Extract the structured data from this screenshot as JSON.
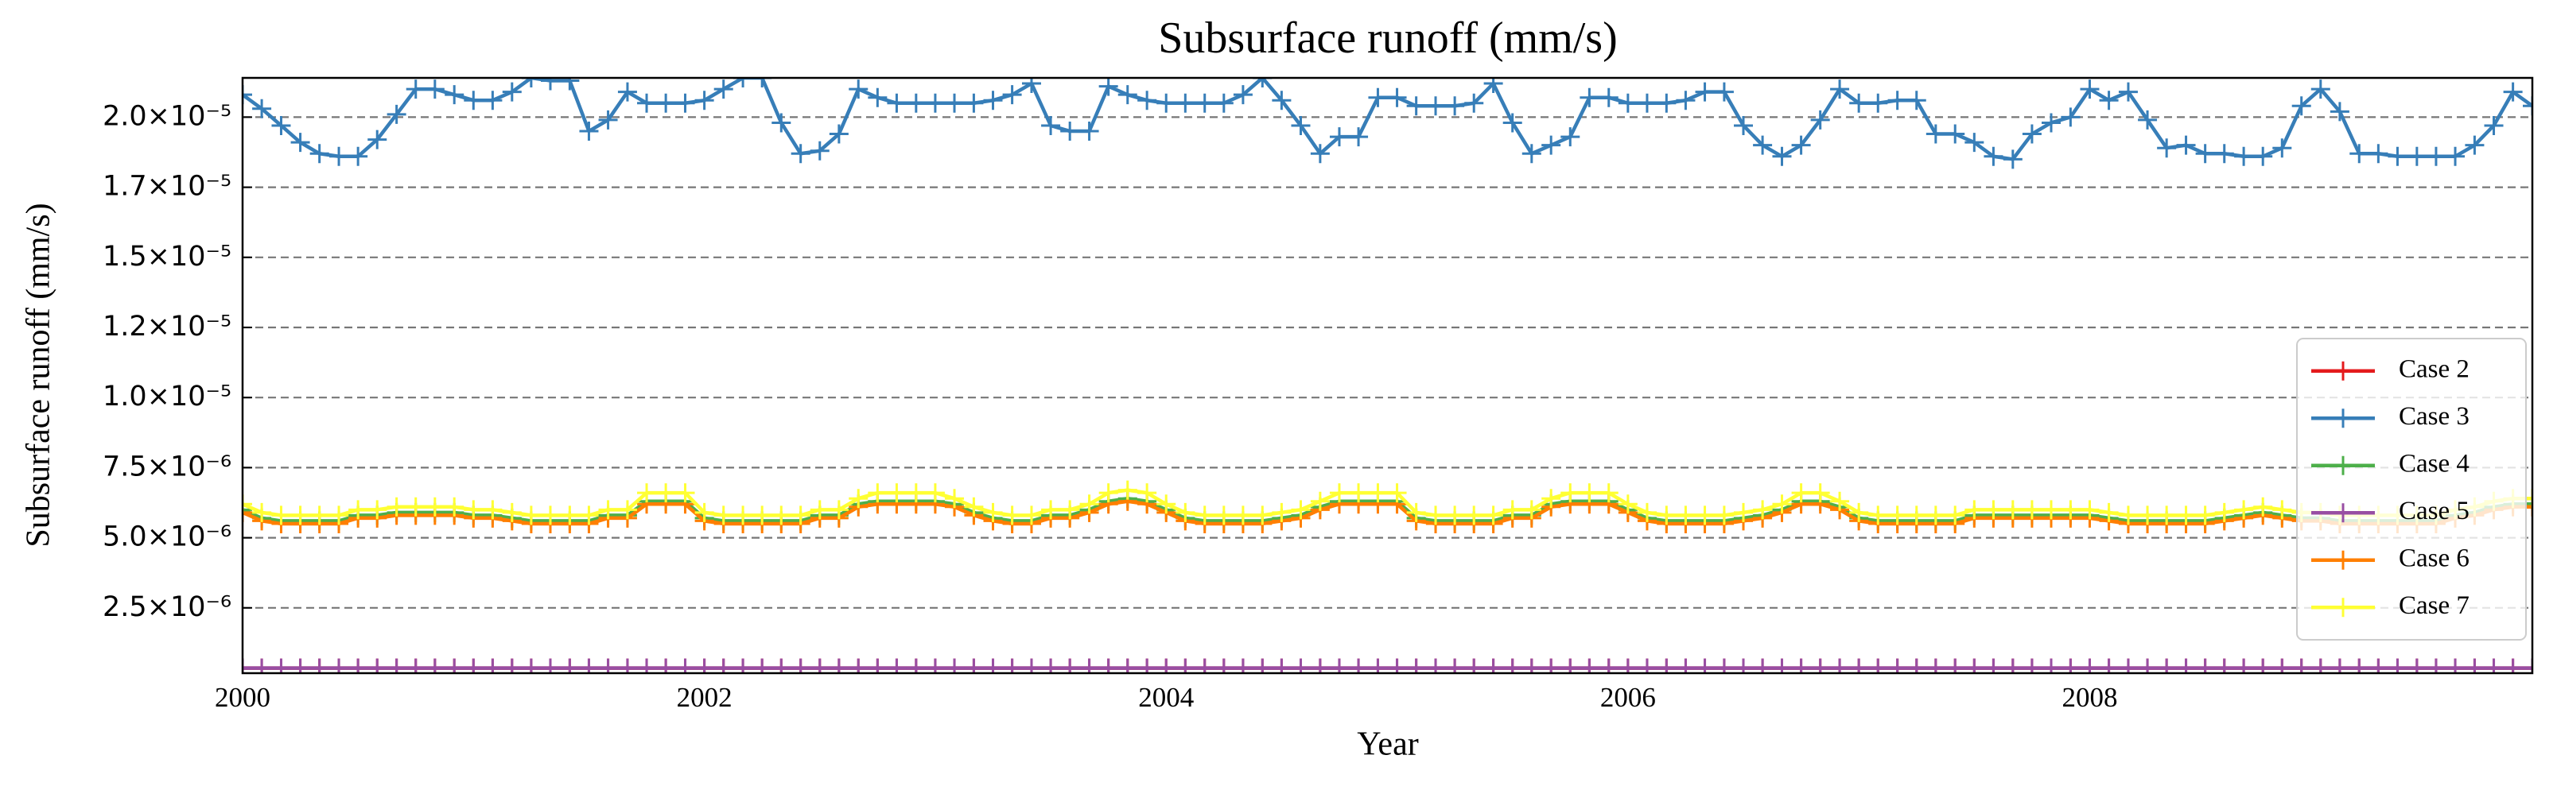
{
  "chart_data": {
    "type": "line",
    "title": "Subsurface runoff (mm/s)",
    "xlabel": "Year",
    "ylabel": "Subsurface runoff (mm/s)",
    "xlim": [
      2000,
      2009.917
    ],
    "xticks": [
      2000,
      2002,
      2004,
      2006,
      2008
    ],
    "ylim": [
      1.7e-07,
      2.14e-05
    ],
    "yticks": [
      {
        "value": 2.5e-06,
        "label": "2.5×10⁻⁶"
      },
      {
        "value": 5e-06,
        "label": "5.0×10⁻⁶"
      },
      {
        "value": 7.5e-06,
        "label": "7.5×10⁻⁶"
      },
      {
        "value": 1e-05,
        "label": "1.0×10⁻⁵"
      },
      {
        "value": 1.25e-05,
        "label": "1.2×10⁻⁵"
      },
      {
        "value": 1.5e-05,
        "label": "1.5×10⁻⁵"
      },
      {
        "value": 1.75e-05,
        "label": "1.7×10⁻⁵"
      },
      {
        "value": 2e-05,
        "label": "2.0×10⁻⁵"
      }
    ],
    "grid": true,
    "legend": "lower right",
    "x": [
      2000,
      2000.083,
      2000.167,
      2000.25,
      2000.333,
      2000.417,
      2000.5,
      2000.583,
      2000.667,
      2000.75,
      2000.833,
      2000.917,
      2001,
      2001.083,
      2001.167,
      2001.25,
      2001.333,
      2001.417,
      2001.5,
      2001.583,
      2001.667,
      2001.75,
      2001.833,
      2001.917,
      2002,
      2002.083,
      2002.167,
      2002.25,
      2002.333,
      2002.417,
      2002.5,
      2002.583,
      2002.667,
      2002.75,
      2002.833,
      2002.917,
      2003,
      2003.083,
      2003.167,
      2003.25,
      2003.333,
      2003.417,
      2003.5,
      2003.583,
      2003.667,
      2003.75,
      2003.833,
      2003.917,
      2004,
      2004.083,
      2004.167,
      2004.25,
      2004.333,
      2004.417,
      2004.5,
      2004.583,
      2004.667,
      2004.75,
      2004.833,
      2004.917,
      2005,
      2005.083,
      2005.167,
      2005.25,
      2005.333,
      2005.417,
      2005.5,
      2005.583,
      2005.667,
      2005.75,
      2005.833,
      2005.917,
      2006,
      2006.083,
      2006.167,
      2006.25,
      2006.333,
      2006.417,
      2006.5,
      2006.583,
      2006.667,
      2006.75,
      2006.833,
      2006.917,
      2007,
      2007.083,
      2007.167,
      2007.25,
      2007.333,
      2007.417,
      2007.5,
      2007.583,
      2007.667,
      2007.75,
      2007.833,
      2007.917,
      2008,
      2008.083,
      2008.167,
      2008.25,
      2008.333,
      2008.417,
      2008.5,
      2008.583,
      2008.667,
      2008.75,
      2008.833,
      2008.917,
      2009,
      2009.083,
      2009.167,
      2009.25,
      2009.333,
      2009.417,
      2009.5,
      2009.583,
      2009.667,
      2009.75,
      2009.833,
      2009.917
    ],
    "series": [
      {
        "name": "Case 2",
        "color": "#e41a1c",
        "values": [
          3.5e-07,
          3.5e-07,
          3.5e-07,
          3.5e-07,
          3.5e-07,
          3.5e-07,
          3.5e-07,
          3.5e-07,
          3.5e-07,
          3.5e-07,
          3.5e-07,
          3.5e-07,
          3.5e-07,
          3.5e-07,
          3.5e-07,
          3.5e-07,
          3.5e-07,
          3.5e-07,
          3.5e-07,
          3.5e-07,
          3.5e-07,
          3.5e-07,
          3.5e-07,
          3.5e-07,
          3.5e-07,
          3.5e-07,
          3.5e-07,
          3.5e-07,
          3.5e-07,
          3.5e-07,
          3.5e-07,
          3.5e-07,
          3.5e-07,
          3.5e-07,
          3.5e-07,
          3.5e-07,
          3.5e-07,
          3.5e-07,
          3.5e-07,
          3.5e-07,
          3.5e-07,
          3.5e-07,
          3.5e-07,
          3.5e-07,
          3.5e-07,
          3.5e-07,
          3.5e-07,
          3.5e-07,
          3.5e-07,
          3.5e-07,
          3.5e-07,
          3.5e-07,
          3.5e-07,
          3.5e-07,
          3.5e-07,
          3.5e-07,
          3.5e-07,
          3.5e-07,
          3.5e-07,
          3.5e-07,
          3.5e-07,
          3.5e-07,
          3.5e-07,
          3.5e-07,
          3.5e-07,
          3.5e-07,
          3.5e-07,
          3.5e-07,
          3.5e-07,
          3.5e-07,
          3.5e-07,
          3.5e-07,
          3.5e-07,
          3.5e-07,
          3.5e-07,
          3.5e-07,
          3.5e-07,
          3.5e-07,
          3.5e-07,
          3.5e-07,
          3.5e-07,
          3.5e-07,
          3.5e-07,
          3.5e-07,
          3.5e-07,
          3.5e-07,
          3.5e-07,
          3.5e-07,
          3.5e-07,
          3.5e-07,
          3.5e-07,
          3.5e-07,
          3.5e-07,
          3.5e-07,
          3.5e-07,
          3.5e-07,
          3.5e-07,
          3.5e-07,
          3.5e-07,
          3.5e-07,
          3.5e-07,
          3.5e-07,
          3.5e-07,
          3.5e-07,
          3.5e-07,
          3.5e-07,
          3.5e-07,
          3.5e-07,
          3.5e-07,
          3.5e-07,
          3.5e-07,
          3.5e-07,
          3.5e-07,
          3.5e-07,
          3.5e-07,
          3.5e-07,
          3.5e-07,
          3.5e-07,
          3.5e-07,
          3.5e-07
        ]
      },
      {
        "name": "Case 3",
        "color": "#377eb8",
        "values": [
          2.08e-05,
          2.03e-05,
          1.97e-05,
          1.91e-05,
          1.87e-05,
          1.86e-05,
          1.86e-05,
          1.92e-05,
          2.01e-05,
          2.1e-05,
          2.1e-05,
          2.08e-05,
          2.06e-05,
          2.06e-05,
          2.09e-05,
          2.14e-05,
          2.13e-05,
          2.13e-05,
          1.95e-05,
          1.99e-05,
          2.09e-05,
          2.05e-05,
          2.05e-05,
          2.05e-05,
          2.06e-05,
          2.1e-05,
          2.14e-05,
          2.14e-05,
          1.98e-05,
          1.87e-05,
          1.88e-05,
          1.94e-05,
          2.1e-05,
          2.07e-05,
          2.05e-05,
          2.05e-05,
          2.05e-05,
          2.05e-05,
          2.05e-05,
          2.06e-05,
          2.08e-05,
          2.12e-05,
          1.97e-05,
          1.95e-05,
          1.95e-05,
          2.11e-05,
          2.08e-05,
          2.06e-05,
          2.05e-05,
          2.05e-05,
          2.05e-05,
          2.05e-05,
          2.08e-05,
          2.14e-05,
          2.06e-05,
          1.97e-05,
          1.87e-05,
          1.93e-05,
          1.93e-05,
          2.07e-05,
          2.07e-05,
          2.04e-05,
          2.04e-05,
          2.04e-05,
          2.05e-05,
          2.12e-05,
          1.98e-05,
          1.87e-05,
          1.9e-05,
          1.93e-05,
          2.07e-05,
          2.07e-05,
          2.05e-05,
          2.05e-05,
          2.05e-05,
          2.06e-05,
          2.09e-05,
          2.09e-05,
          1.97e-05,
          1.9e-05,
          1.86e-05,
          1.9e-05,
          1.99e-05,
          2.1e-05,
          2.05e-05,
          2.05e-05,
          2.06e-05,
          2.06e-05,
          1.94e-05,
          1.94e-05,
          1.91e-05,
          1.86e-05,
          1.85e-05,
          1.94e-05,
          1.98e-05,
          2e-05,
          2.1e-05,
          2.06e-05,
          2.09e-05,
          1.99e-05,
          1.89e-05,
          1.9e-05,
          1.87e-05,
          1.87e-05,
          1.86e-05,
          1.86e-05,
          1.89e-05,
          2.04e-05,
          2.1e-05,
          2.02e-05,
          1.87e-05,
          1.87e-05,
          1.86e-05,
          1.86e-05,
          1.86e-05,
          1.86e-05,
          1.9e-05,
          1.97e-05,
          2.09e-05,
          2.04e-05
        ]
      },
      {
        "name": "Case 4",
        "color": "#4daf4a",
        "values": [
          6e-06,
          5.7e-06,
          5.6e-06,
          5.6e-06,
          5.6e-06,
          5.6e-06,
          5.8e-06,
          5.8e-06,
          5.9e-06,
          5.9e-06,
          5.9e-06,
          5.9e-06,
          5.8e-06,
          5.8e-06,
          5.7e-06,
          5.6e-06,
          5.6e-06,
          5.6e-06,
          5.6e-06,
          5.8e-06,
          5.8e-06,
          6.3e-06,
          6.3e-06,
          6.3e-06,
          5.7e-06,
          5.6e-06,
          5.6e-06,
          5.6e-06,
          5.6e-06,
          5.6e-06,
          5.8e-06,
          5.8e-06,
          6.2e-06,
          6.3e-06,
          6.3e-06,
          6.3e-06,
          6.3e-06,
          6.2e-06,
          5.9e-06,
          5.7e-06,
          5.6e-06,
          5.6e-06,
          5.8e-06,
          5.8e-06,
          6e-06,
          6.3e-06,
          6.4e-06,
          6.3e-06,
          6e-06,
          5.7e-06,
          5.6e-06,
          5.6e-06,
          5.6e-06,
          5.6e-06,
          5.7e-06,
          5.8e-06,
          6.1e-06,
          6.3e-06,
          6.3e-06,
          6.3e-06,
          6.3e-06,
          5.7e-06,
          5.6e-06,
          5.6e-06,
          5.6e-06,
          5.6e-06,
          5.8e-06,
          5.8e-06,
          6.2e-06,
          6.3e-06,
          6.3e-06,
          6.3e-06,
          6e-06,
          5.7e-06,
          5.6e-06,
          5.6e-06,
          5.6e-06,
          5.6e-06,
          5.7e-06,
          5.8e-06,
          6e-06,
          6.3e-06,
          6.3e-06,
          6.1e-06,
          5.7e-06,
          5.6e-06,
          5.6e-06,
          5.6e-06,
          5.6e-06,
          5.6e-06,
          5.8e-06,
          5.8e-06,
          5.8e-06,
          5.8e-06,
          5.8e-06,
          5.8e-06,
          5.8e-06,
          5.7e-06,
          5.6e-06,
          5.6e-06,
          5.6e-06,
          5.6e-06,
          5.6e-06,
          5.7e-06,
          5.8e-06,
          5.9e-06,
          5.8e-06,
          5.7e-06,
          5.7e-06,
          5.6e-06,
          5.6e-06,
          5.6e-06,
          5.6e-06,
          5.6e-06,
          5.6e-06,
          5.8e-06,
          5.9e-06,
          6.1e-06,
          6.2e-06,
          6.2e-06
        ]
      },
      {
        "name": "Case 5",
        "color": "#984ea3",
        "values": [
          3.5e-07,
          3.5e-07,
          3.5e-07,
          3.5e-07,
          3.5e-07,
          3.5e-07,
          3.5e-07,
          3.5e-07,
          3.5e-07,
          3.5e-07,
          3.5e-07,
          3.5e-07,
          3.5e-07,
          3.5e-07,
          3.5e-07,
          3.5e-07,
          3.5e-07,
          3.5e-07,
          3.5e-07,
          3.5e-07,
          3.5e-07,
          3.5e-07,
          3.5e-07,
          3.5e-07,
          3.5e-07,
          3.5e-07,
          3.5e-07,
          3.5e-07,
          3.5e-07,
          3.5e-07,
          3.5e-07,
          3.5e-07,
          3.5e-07,
          3.5e-07,
          3.5e-07,
          3.5e-07,
          3.5e-07,
          3.5e-07,
          3.5e-07,
          3.5e-07,
          3.5e-07,
          3.5e-07,
          3.5e-07,
          3.5e-07,
          3.5e-07,
          3.5e-07,
          3.5e-07,
          3.5e-07,
          3.5e-07,
          3.5e-07,
          3.5e-07,
          3.5e-07,
          3.5e-07,
          3.5e-07,
          3.5e-07,
          3.5e-07,
          3.5e-07,
          3.5e-07,
          3.5e-07,
          3.5e-07,
          3.5e-07,
          3.5e-07,
          3.5e-07,
          3.5e-07,
          3.5e-07,
          3.5e-07,
          3.5e-07,
          3.5e-07,
          3.5e-07,
          3.5e-07,
          3.5e-07,
          3.5e-07,
          3.5e-07,
          3.5e-07,
          3.5e-07,
          3.5e-07,
          3.5e-07,
          3.5e-07,
          3.5e-07,
          3.5e-07,
          3.5e-07,
          3.5e-07,
          3.5e-07,
          3.5e-07,
          3.5e-07,
          3.5e-07,
          3.5e-07,
          3.5e-07,
          3.5e-07,
          3.5e-07,
          3.5e-07,
          3.5e-07,
          3.5e-07,
          3.5e-07,
          3.5e-07,
          3.5e-07,
          3.5e-07,
          3.5e-07,
          3.5e-07,
          3.5e-07,
          3.5e-07,
          3.5e-07,
          3.5e-07,
          3.5e-07,
          3.5e-07,
          3.5e-07,
          3.5e-07,
          3.5e-07,
          3.5e-07,
          3.5e-07,
          3.5e-07,
          3.5e-07,
          3.5e-07,
          3.5e-07,
          3.5e-07,
          3.5e-07,
          3.5e-07,
          3.5e-07,
          3.5e-07,
          3.5e-07
        ]
      },
      {
        "name": "Case 6",
        "color": "#ff7f00",
        "values": [
          5.9e-06,
          5.6e-06,
          5.5e-06,
          5.5e-06,
          5.5e-06,
          5.5e-06,
          5.7e-06,
          5.7e-06,
          5.8e-06,
          5.8e-06,
          5.8e-06,
          5.8e-06,
          5.7e-06,
          5.7e-06,
          5.6e-06,
          5.5e-06,
          5.5e-06,
          5.5e-06,
          5.5e-06,
          5.7e-06,
          5.7e-06,
          6.2e-06,
          6.2e-06,
          6.2e-06,
          5.6e-06,
          5.5e-06,
          5.5e-06,
          5.5e-06,
          5.5e-06,
          5.5e-06,
          5.7e-06,
          5.7e-06,
          6.1e-06,
          6.2e-06,
          6.2e-06,
          6.2e-06,
          6.2e-06,
          6.1e-06,
          5.8e-06,
          5.6e-06,
          5.5e-06,
          5.5e-06,
          5.7e-06,
          5.7e-06,
          5.9e-06,
          6.2e-06,
          6.3e-06,
          6.2e-06,
          5.9e-06,
          5.6e-06,
          5.5e-06,
          5.5e-06,
          5.5e-06,
          5.5e-06,
          5.6e-06,
          5.7e-06,
          6e-06,
          6.2e-06,
          6.2e-06,
          6.2e-06,
          6.2e-06,
          5.6e-06,
          5.5e-06,
          5.5e-06,
          5.5e-06,
          5.5e-06,
          5.7e-06,
          5.7e-06,
          6.1e-06,
          6.2e-06,
          6.2e-06,
          6.2e-06,
          5.9e-06,
          5.6e-06,
          5.5e-06,
          5.5e-06,
          5.5e-06,
          5.5e-06,
          5.6e-06,
          5.7e-06,
          5.9e-06,
          6.2e-06,
          6.2e-06,
          6e-06,
          5.6e-06,
          5.5e-06,
          5.5e-06,
          5.5e-06,
          5.5e-06,
          5.5e-06,
          5.7e-06,
          5.7e-06,
          5.7e-06,
          5.7e-06,
          5.7e-06,
          5.7e-06,
          5.7e-06,
          5.6e-06,
          5.5e-06,
          5.5e-06,
          5.5e-06,
          5.5e-06,
          5.5e-06,
          5.6e-06,
          5.7e-06,
          5.8e-06,
          5.7e-06,
          5.6e-06,
          5.6e-06,
          5.5e-06,
          5.5e-06,
          5.5e-06,
          5.5e-06,
          5.5e-06,
          5.5e-06,
          5.7e-06,
          5.8e-06,
          6e-06,
          6.1e-06,
          6.1e-06
        ]
      },
      {
        "name": "Case 7",
        "color": "#ffff33",
        "values": [
          6.2e-06,
          5.9e-06,
          5.8e-06,
          5.8e-06,
          5.8e-06,
          5.8e-06,
          6e-06,
          6e-06,
          6.1e-06,
          6.1e-06,
          6.1e-06,
          6.1e-06,
          6e-06,
          6e-06,
          5.9e-06,
          5.8e-06,
          5.8e-06,
          5.8e-06,
          5.8e-06,
          6e-06,
          6e-06,
          6.6e-06,
          6.6e-06,
          6.6e-06,
          5.9e-06,
          5.8e-06,
          5.8e-06,
          5.8e-06,
          5.8e-06,
          5.8e-06,
          6e-06,
          6e-06,
          6.4e-06,
          6.6e-06,
          6.6e-06,
          6.6e-06,
          6.6e-06,
          6.4e-06,
          6.1e-06,
          5.9e-06,
          5.8e-06,
          5.8e-06,
          6e-06,
          6e-06,
          6.2e-06,
          6.6e-06,
          6.7e-06,
          6.6e-06,
          6.2e-06,
          5.9e-06,
          5.8e-06,
          5.8e-06,
          5.8e-06,
          5.8e-06,
          5.9e-06,
          6e-06,
          6.3e-06,
          6.6e-06,
          6.6e-06,
          6.6e-06,
          6.6e-06,
          5.9e-06,
          5.8e-06,
          5.8e-06,
          5.8e-06,
          5.8e-06,
          6e-06,
          6e-06,
          6.4e-06,
          6.6e-06,
          6.6e-06,
          6.6e-06,
          6.2e-06,
          5.9e-06,
          5.8e-06,
          5.8e-06,
          5.8e-06,
          5.8e-06,
          5.9e-06,
          6e-06,
          6.2e-06,
          6.6e-06,
          6.6e-06,
          6.3e-06,
          5.9e-06,
          5.8e-06,
          5.8e-06,
          5.8e-06,
          5.8e-06,
          5.8e-06,
          6e-06,
          6e-06,
          6e-06,
          6e-06,
          6e-06,
          6e-06,
          6e-06,
          5.9e-06,
          5.8e-06,
          5.8e-06,
          5.8e-06,
          5.8e-06,
          5.8e-06,
          5.9e-06,
          6e-06,
          6.1e-06,
          6e-06,
          5.9e-06,
          5.9e-06,
          5.8e-06,
          5.8e-06,
          5.8e-06,
          5.8e-06,
          5.8e-06,
          5.8e-06,
          6e-06,
          6.1e-06,
          6.3e-06,
          6.4e-06,
          6.4e-06
        ]
      }
    ]
  }
}
